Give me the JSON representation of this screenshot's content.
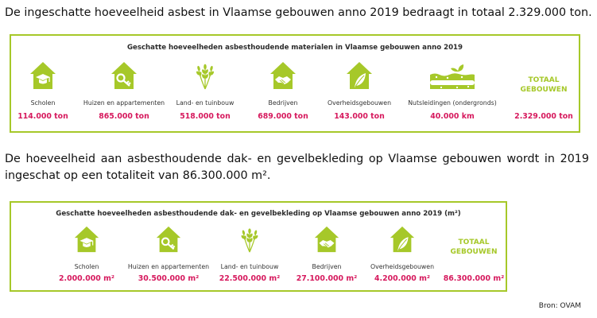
{
  "intro_text": "De ingeschatte hoeveelheid asbest in Vlaamse gebouwen anno 2019 bedraagt in totaal 2.329.000 ton.",
  "second_text": "De hoeveelheid aan asbesthoudende dak- en gevelbekleding op Vlaamse gebouwen wordt in 2019 ingeschat op een totaliteit van 86.300.000 m².",
  "source": "Bron: OVAM",
  "colors": {
    "accent_green": "#a6c829",
    "value_red": "#d6195d"
  },
  "panel1": {
    "title": "Geschatte hoeveelheden asbesthoudende materialen in Vlaamse gebouwen anno 2019",
    "items": [
      {
        "icon": "school-house-icon",
        "label": "Scholen",
        "value": "114.000 ton"
      },
      {
        "icon": "home-key-icon",
        "label": "Huizen en appartementen",
        "value": "865.000 ton"
      },
      {
        "icon": "wheat-icon",
        "label": "Land- en tuinbouw",
        "value": "518.000 ton"
      },
      {
        "icon": "business-handshake-icon",
        "label": "Bedrijven",
        "value": "689.000 ton"
      },
      {
        "icon": "government-leaf-icon",
        "label": "Overheidsgebouwen",
        "value": "143.000 ton"
      },
      {
        "icon": "utility-pipe-icon",
        "label": "Nutsleidingen (ondergronds)",
        "value": "40.000 km"
      }
    ],
    "total": {
      "label_line1": "TOTAAL",
      "label_line2": "GEBOUWEN",
      "value": "2.329.000 ton"
    }
  },
  "panel2": {
    "title": "Geschatte hoeveelheden asbesthoudende dak- en gevelbekleding op Vlaamse gebouwen anno 2019 (m²)",
    "items": [
      {
        "icon": "school-house-icon",
        "label": "Scholen",
        "value": "2.000.000 m²"
      },
      {
        "icon": "home-key-icon",
        "label": "Huizen en appartementen",
        "value": "30.500.000 m²"
      },
      {
        "icon": "wheat-icon",
        "label": "Land- en tuinbouw",
        "value": "22.500.000 m²"
      },
      {
        "icon": "business-handshake-icon",
        "label": "Bedrijven",
        "value": "27.100.000 m²"
      },
      {
        "icon": "government-leaf-icon",
        "label": "Overheidsgebouwen",
        "value": "4.200.000 m²"
      }
    ],
    "total": {
      "label_line1": "TOTAAL",
      "label_line2": "GEBOUWEN",
      "value": "86.300.000 m²"
    }
  }
}
